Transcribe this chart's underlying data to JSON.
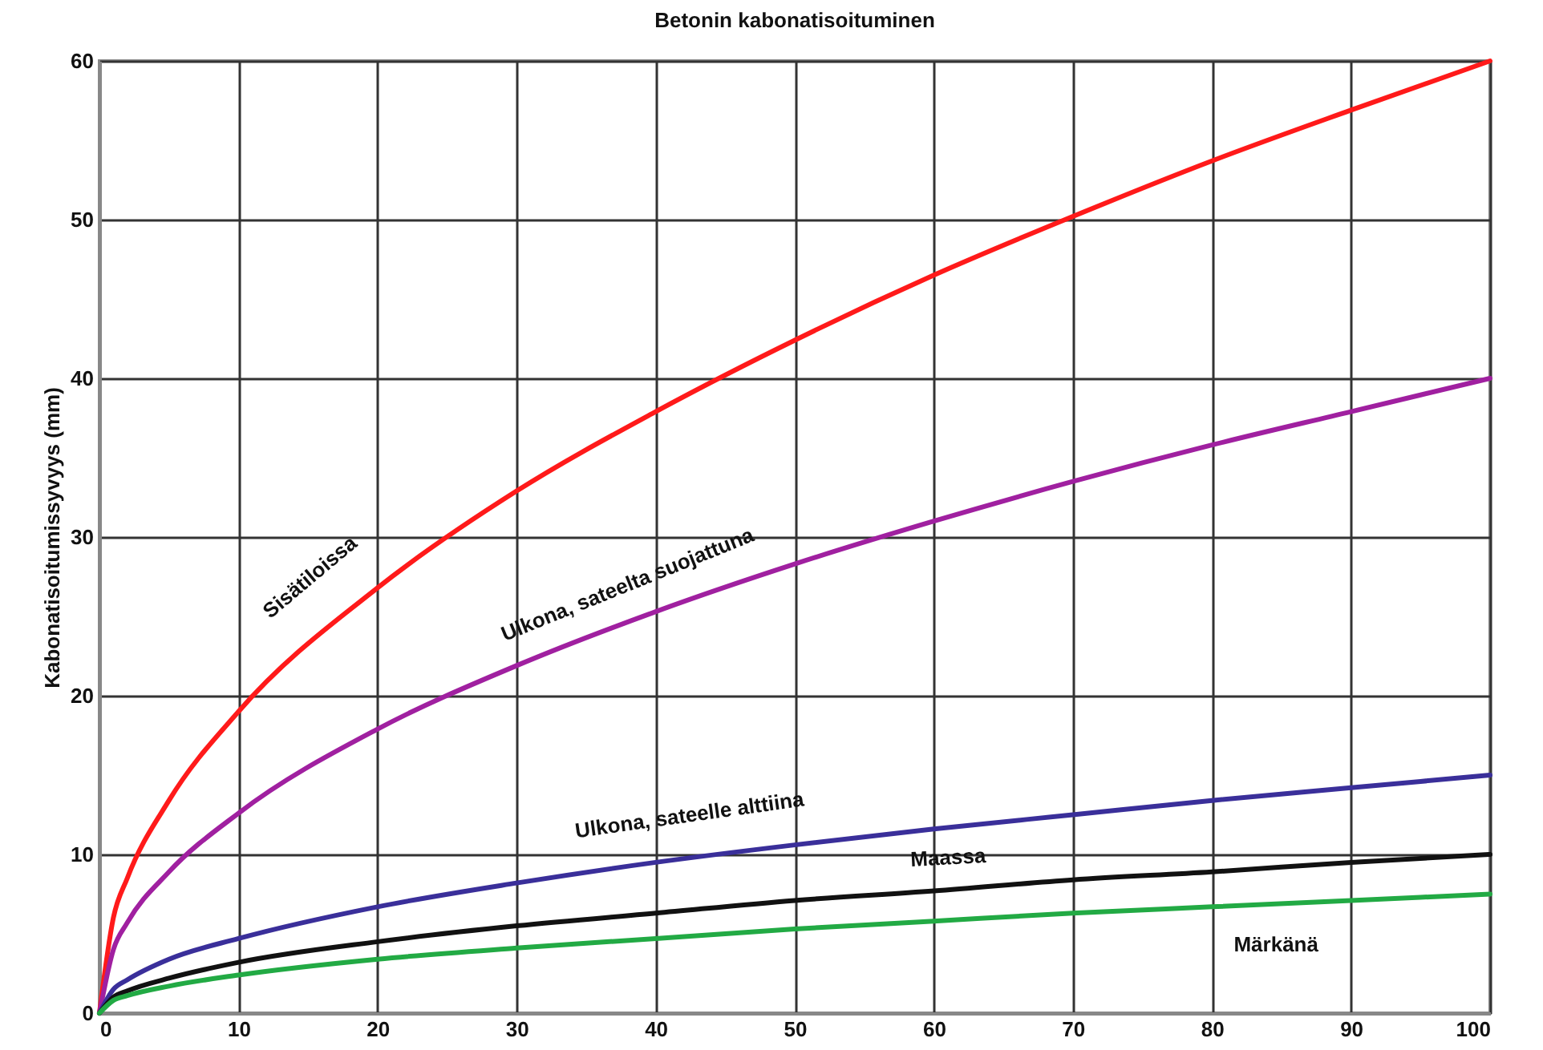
{
  "chart_data": {
    "type": "line",
    "title": "Betonin kabonatisoituminen",
    "ylabel": "Kabonatisoitumissyvyys (mm)",
    "x": [
      0,
      1,
      2,
      5,
      10,
      20,
      30,
      40,
      50,
      60,
      70,
      80,
      90,
      100
    ],
    "series": [
      {
        "name": "Sisätiloissa",
        "color": "#ff1a1a",
        "values": [
          0,
          6,
          8.5,
          13.4,
          19,
          26.8,
          32.9,
          37.9,
          42.4,
          46.5,
          50.2,
          53.7,
          56.9,
          60
        ]
      },
      {
        "name": "Ulkona, sateelta suojattuna",
        "color": "#a020a0",
        "values": [
          0,
          4,
          5.7,
          8.9,
          12.6,
          17.9,
          21.9,
          25.3,
          28.3,
          31,
          33.5,
          35.8,
          37.9,
          40
        ]
      },
      {
        "name": "Ulkona, sateelle alttiina",
        "color": "#3a2f9a",
        "values": [
          0,
          1.5,
          2.1,
          3.4,
          4.7,
          6.7,
          8.2,
          9.5,
          10.6,
          11.6,
          12.5,
          13.4,
          14.2,
          15
        ]
      },
      {
        "name": "Maassa",
        "color": "#111111",
        "values": [
          0,
          1,
          1.4,
          2.2,
          3.2,
          4.5,
          5.5,
          6.3,
          7.1,
          7.7,
          8.4,
          8.9,
          9.5,
          10
        ]
      },
      {
        "name": "Märkänä",
        "color": "#22aa44",
        "values": [
          0,
          0.8,
          1.1,
          1.7,
          2.4,
          3.4,
          4.1,
          4.7,
          5.3,
          5.8,
          6.3,
          6.7,
          7.1,
          7.5
        ]
      }
    ],
    "xlim": [
      0,
      100
    ],
    "xticks": [
      0,
      10,
      20,
      30,
      40,
      50,
      60,
      70,
      80,
      90,
      100
    ],
    "ylim": [
      0,
      60
    ],
    "yticks": [
      0,
      10,
      20,
      30,
      40,
      50,
      60
    ],
    "grid": true,
    "legend": false,
    "marker": "none",
    "line_style": "solid"
  }
}
